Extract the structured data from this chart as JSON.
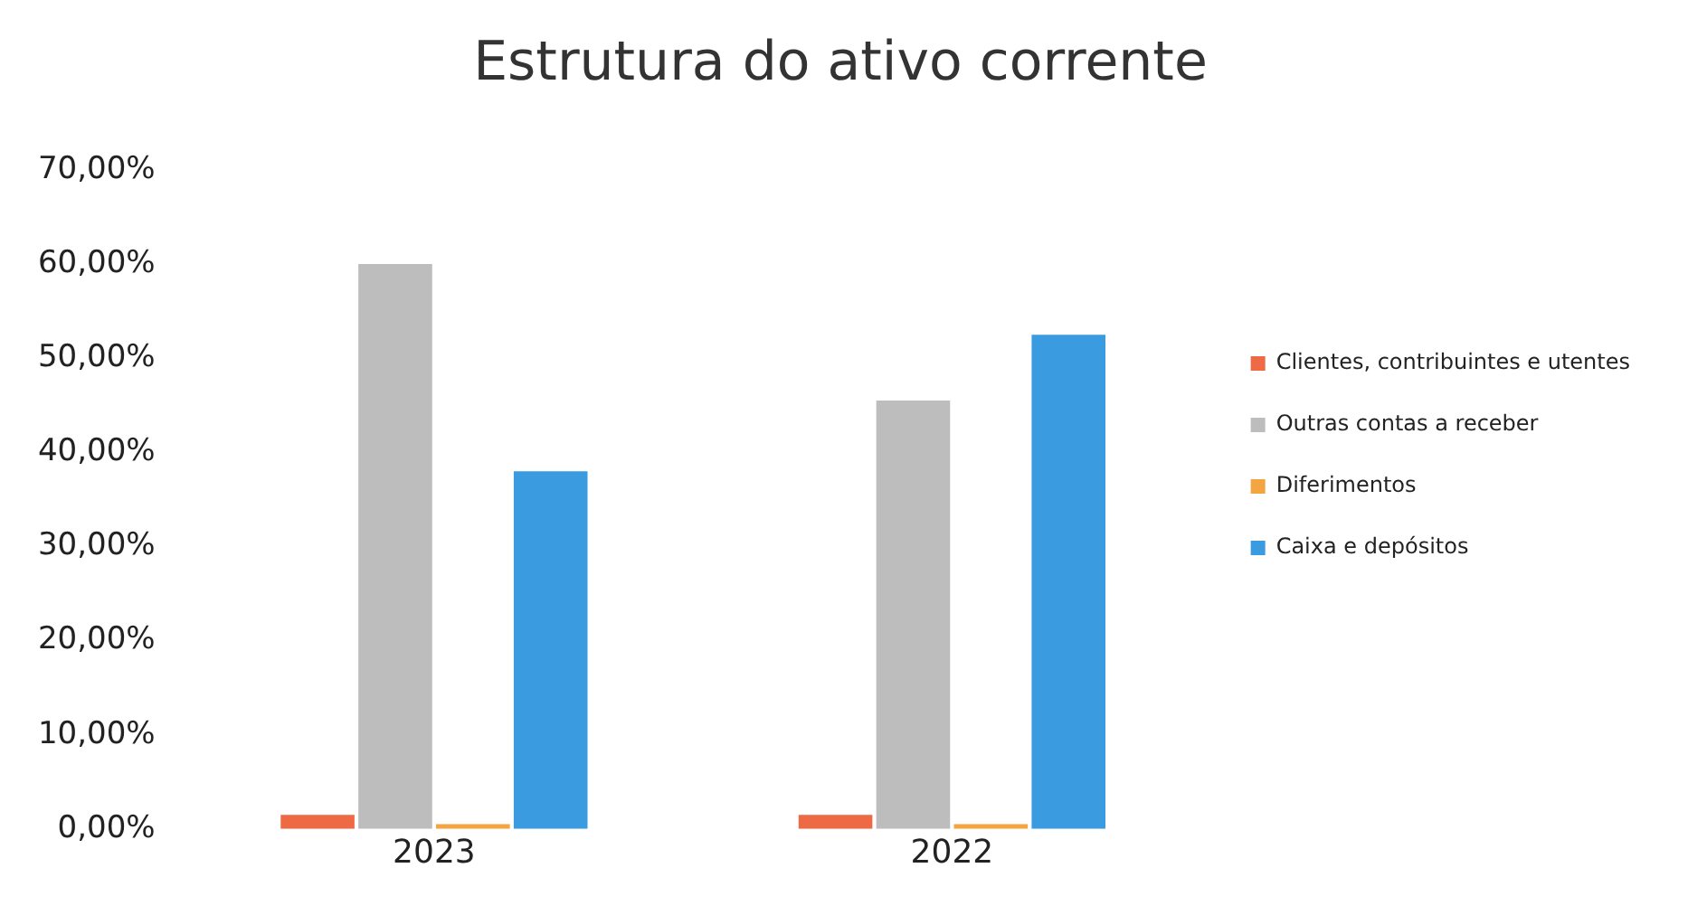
{
  "chart_data": {
    "type": "bar",
    "title": "Estrutura do ativo corrente",
    "categories": [
      "2023",
      "2022"
    ],
    "series": [
      {
        "name": "Clientes, contribuintes e utentes",
        "color": "#ee6a45",
        "values": [
          1.5,
          1.5
        ]
      },
      {
        "name": "Outras contas a receber",
        "color": "#bdbdbd",
        "values": [
          60,
          45.5
        ]
      },
      {
        "name": "Diferimentos",
        "color": "#f2a541",
        "values": [
          0.5,
          0.5
        ]
      },
      {
        "name": "Caixa e depósitos",
        "color": "#3a9be0",
        "values": [
          38,
          52.5
        ]
      }
    ],
    "ylim": [
      0,
      70
    ],
    "yticks": [
      {
        "value": 0,
        "label": "0,00%"
      },
      {
        "value": 10,
        "label": "10,00%"
      },
      {
        "value": 20,
        "label": "20,00%"
      },
      {
        "value": 30,
        "label": "30,00%"
      },
      {
        "value": 40,
        "label": "40,00%"
      },
      {
        "value": 50,
        "label": "50,00%"
      },
      {
        "value": 60,
        "label": "60,00%"
      },
      {
        "value": 70,
        "label": "70,00%"
      }
    ],
    "grid": false,
    "legend": "right"
  }
}
